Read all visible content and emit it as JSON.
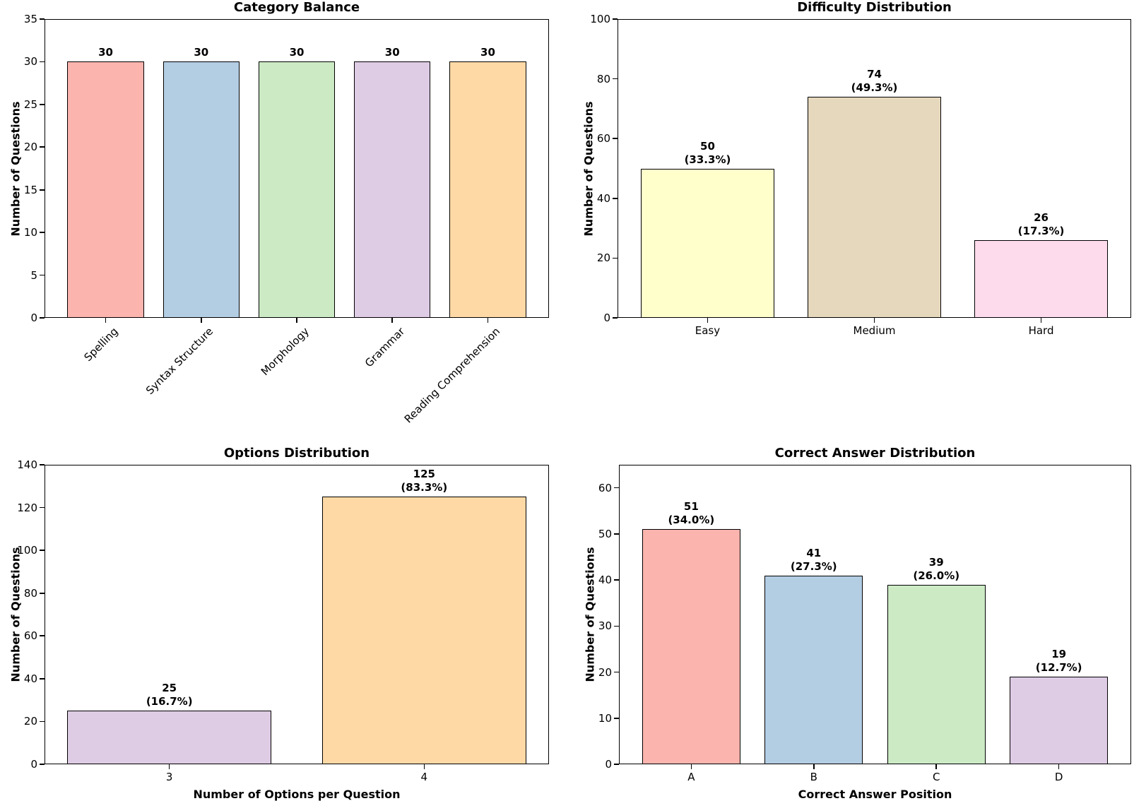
{
  "figure": {
    "background": "#ffffff",
    "bar_edge_color": "#000000",
    "text_color": "#000000"
  },
  "chart_data": [
    {
      "type": "bar",
      "title": "Category Balance",
      "ylabel": "Number of Questions",
      "xlabel": "",
      "categories": [
        "Spelling",
        "Syntax Structure",
        "Morphology",
        "Grammar",
        "Reading Comprehension"
      ],
      "values": [
        30,
        30,
        30,
        30,
        30
      ],
      "bar_labels": [
        [
          "30"
        ],
        [
          "30"
        ],
        [
          "30"
        ],
        [
          "30"
        ],
        [
          "30"
        ]
      ],
      "colors": [
        "#fbb4ae",
        "#b3cde3",
        "#ccebc5",
        "#decbe4",
        "#fed9a6"
      ],
      "ylim": [
        0,
        35
      ],
      "yticks": [
        0,
        5,
        10,
        15,
        20,
        25,
        30,
        35
      ],
      "x_tick_rotation": 45,
      "grid": false,
      "legend": null
    },
    {
      "type": "bar",
      "title": "Difficulty Distribution",
      "ylabel": "Number of Questions",
      "xlabel": "",
      "categories": [
        "Easy",
        "Medium",
        "Hard"
      ],
      "values": [
        50,
        74,
        26
      ],
      "bar_labels": [
        [
          "50",
          "(33.3%)"
        ],
        [
          "74",
          "(49.3%)"
        ],
        [
          "26",
          "(17.3%)"
        ]
      ],
      "colors": [
        "#ffffcc",
        "#e5d8bd",
        "#fddaec"
      ],
      "ylim": [
        0,
        100
      ],
      "yticks": [
        0,
        20,
        40,
        60,
        80,
        100
      ],
      "x_tick_rotation": 0,
      "grid": false,
      "legend": null
    },
    {
      "type": "bar",
      "title": "Options Distribution",
      "ylabel": "Number of Questions",
      "xlabel": "Number of Options per Question",
      "categories": [
        "3",
        "4"
      ],
      "values": [
        25,
        125
      ],
      "bar_labels": [
        [
          "25",
          "(16.7%)"
        ],
        [
          "125",
          "(83.3%)"
        ]
      ],
      "colors": [
        "#decbe4",
        "#fed9a6"
      ],
      "ylim": [
        0,
        140
      ],
      "yticks": [
        0,
        20,
        40,
        60,
        80,
        100,
        120,
        140
      ],
      "x_tick_rotation": 0,
      "grid": false,
      "legend": null
    },
    {
      "type": "bar",
      "title": "Correct Answer Distribution",
      "ylabel": "Number of Questions",
      "xlabel": "Correct Answer Position",
      "categories": [
        "A",
        "B",
        "C",
        "D"
      ],
      "values": [
        51,
        41,
        39,
        19
      ],
      "bar_labels": [
        [
          "51",
          "(34.0%)"
        ],
        [
          "41",
          "(27.3%)"
        ],
        [
          "39",
          "(26.0%)"
        ],
        [
          "19",
          "(12.7%)"
        ]
      ],
      "colors": [
        "#fbb4ae",
        "#b3cde3",
        "#ccebc5",
        "#decbe4"
      ],
      "ylim": [
        0,
        65
      ],
      "yticks": [
        0,
        10,
        20,
        30,
        40,
        50,
        60
      ],
      "x_tick_rotation": 0,
      "grid": false,
      "legend": null
    }
  ]
}
